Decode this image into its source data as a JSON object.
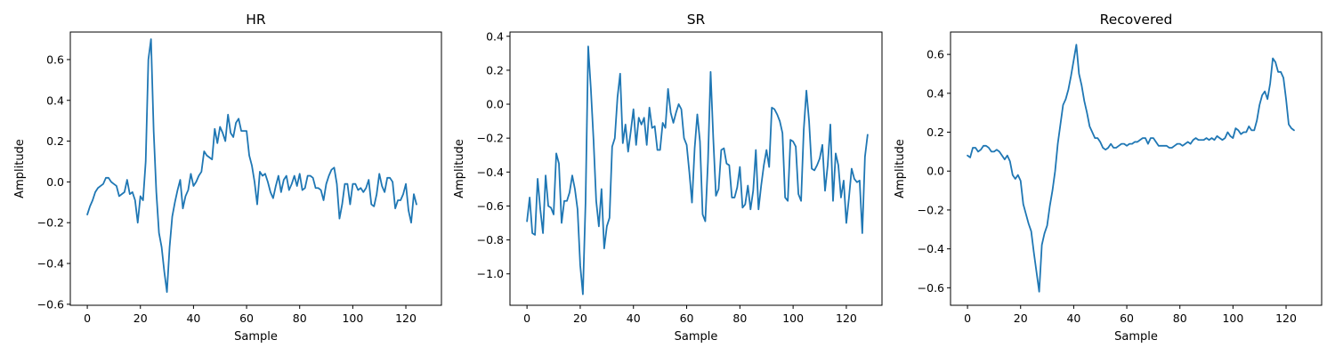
{
  "figure": {
    "background": "#ffffff",
    "line_color": "#1f77b4"
  },
  "chart_data": [
    {
      "type": "line",
      "title": "HR",
      "xlabel": "Sample",
      "ylabel": "Amplitude",
      "xlim": [
        -6.4,
        133.4
      ],
      "ylim": [
        -0.605,
        0.735
      ],
      "xticks": [
        0,
        20,
        40,
        60,
        80,
        100,
        120
      ],
      "yticks": [
        -0.6,
        -0.4,
        -0.2,
        0.0,
        0.2,
        0.4,
        0.6
      ],
      "ytick_labels": [
        "−0.6",
        "−0.4",
        "−0.2",
        "0.0",
        "0.2",
        "0.4",
        "0.6"
      ],
      "grid": false,
      "x_start": 0,
      "x_step": 1,
      "values": [
        -0.16,
        -0.12,
        -0.09,
        -0.05,
        -0.03,
        -0.02,
        -0.01,
        0.02,
        0.02,
        0.0,
        -0.01,
        -0.02,
        -0.07,
        -0.06,
        -0.05,
        0.01,
        -0.06,
        -0.05,
        -0.09,
        -0.2,
        -0.07,
        -0.09,
        0.1,
        0.6,
        0.7,
        0.25,
        -0.05,
        -0.25,
        -0.32,
        -0.44,
        -0.54,
        -0.32,
        -0.17,
        -0.1,
        -0.04,
        0.01,
        -0.13,
        -0.07,
        -0.04,
        0.04,
        -0.02,
        0.0,
        0.03,
        0.05,
        0.15,
        0.13,
        0.12,
        0.11,
        0.26,
        0.19,
        0.27,
        0.24,
        0.2,
        0.33,
        0.24,
        0.22,
        0.29,
        0.31,
        0.25,
        0.25,
        0.25,
        0.13,
        0.08,
        0.0,
        -0.11,
        0.05,
        0.03,
        0.04,
        0.0,
        -0.05,
        -0.08,
        -0.02,
        0.03,
        -0.05,
        0.01,
        0.03,
        -0.04,
        -0.01,
        0.03,
        -0.02,
        0.04,
        -0.04,
        -0.03,
        0.03,
        0.03,
        0.02,
        -0.03,
        -0.03,
        -0.04,
        -0.09,
        -0.01,
        0.03,
        0.06,
        0.07,
        -0.01,
        -0.18,
        -0.11,
        -0.01,
        -0.01,
        -0.11,
        -0.01,
        -0.01,
        -0.04,
        -0.03,
        -0.05,
        -0.03,
        0.01,
        -0.11,
        -0.12,
        -0.06,
        0.04,
        -0.02,
        -0.05,
        0.02,
        0.02,
        0.0,
        -0.13,
        -0.09,
        -0.09,
        -0.06,
        -0.01,
        -0.14,
        -0.2,
        -0.06,
        -0.11
      ]
    },
    {
      "type": "line",
      "title": "SR",
      "xlabel": "Sample",
      "ylabel": "Amplitude",
      "xlim": [
        -6.4,
        133.4
      ],
      "ylim": [
        -1.185,
        0.425
      ],
      "xticks": [
        0,
        20,
        40,
        60,
        80,
        100,
        120
      ],
      "yticks": [
        -1.0,
        -0.8,
        -0.6,
        -0.4,
        -0.2,
        0.0,
        0.2,
        0.4
      ],
      "ytick_labels": [
        "−1.0",
        "−0.8",
        "−0.6",
        "−0.4",
        "−0.2",
        "0.0",
        "0.2",
        "0.4"
      ],
      "grid": false,
      "x_start": 0,
      "x_step": 1,
      "values": [
        -0.69,
        -0.55,
        -0.76,
        -0.77,
        -0.44,
        -0.62,
        -0.76,
        -0.42,
        -0.6,
        -0.61,
        -0.65,
        -0.29,
        -0.35,
        -0.7,
        -0.57,
        -0.57,
        -0.52,
        -0.42,
        -0.5,
        -0.62,
        -0.95,
        -1.12,
        -0.58,
        0.34,
        0.09,
        -0.21,
        -0.57,
        -0.72,
        -0.5,
        -0.85,
        -0.72,
        -0.67,
        -0.25,
        -0.2,
        0.04,
        0.18,
        -0.23,
        -0.12,
        -0.28,
        -0.16,
        -0.03,
        -0.24,
        -0.08,
        -0.12,
        -0.08,
        -0.24,
        -0.02,
        -0.14,
        -0.13,
        -0.27,
        -0.27,
        -0.11,
        -0.14,
        0.09,
        -0.05,
        -0.11,
        -0.05,
        0.0,
        -0.03,
        -0.2,
        -0.24,
        -0.4,
        -0.58,
        -0.26,
        -0.06,
        -0.22,
        -0.65,
        -0.69,
        -0.34,
        0.19,
        -0.2,
        -0.54,
        -0.5,
        -0.27,
        -0.26,
        -0.35,
        -0.36,
        -0.55,
        -0.55,
        -0.49,
        -0.37,
        -0.61,
        -0.59,
        -0.48,
        -0.62,
        -0.51,
        -0.27,
        -0.62,
        -0.48,
        -0.36,
        -0.27,
        -0.37,
        -0.02,
        -0.03,
        -0.06,
        -0.1,
        -0.17,
        -0.55,
        -0.57,
        -0.21,
        -0.22,
        -0.25,
        -0.53,
        -0.57,
        -0.15,
        0.08,
        -0.1,
        -0.38,
        -0.39,
        -0.36,
        -0.32,
        -0.24,
        -0.51,
        -0.36,
        -0.12,
        -0.57,
        -0.29,
        -0.36,
        -0.55,
        -0.45,
        -0.7,
        -0.55,
        -0.38,
        -0.44,
        -0.46,
        -0.45,
        -0.76,
        -0.31,
        -0.18
      ]
    },
    {
      "type": "line",
      "title": "Recovered",
      "xlabel": "Sample",
      "ylabel": "Amplitude",
      "xlim": [
        -6.4,
        133.4
      ],
      "ylim": [
        -0.69,
        0.715
      ],
      "xticks": [
        0,
        20,
        40,
        60,
        80,
        100,
        120
      ],
      "yticks": [
        -0.6,
        -0.4,
        -0.2,
        0.0,
        0.2,
        0.4,
        0.6
      ],
      "ytick_labels": [
        "−0.6",
        "−0.4",
        "−0.2",
        "0.0",
        "0.2",
        "0.4",
        "0.6"
      ],
      "grid": false,
      "x_start": 0,
      "x_step": 1,
      "values": [
        0.08,
        0.07,
        0.12,
        0.12,
        0.1,
        0.11,
        0.13,
        0.13,
        0.12,
        0.1,
        0.1,
        0.11,
        0.1,
        0.08,
        0.06,
        0.08,
        0.05,
        -0.02,
        -0.04,
        -0.02,
        -0.05,
        -0.17,
        -0.22,
        -0.27,
        -0.31,
        -0.42,
        -0.52,
        -0.62,
        -0.38,
        -0.32,
        -0.28,
        -0.18,
        -0.1,
        0.0,
        0.14,
        0.24,
        0.34,
        0.37,
        0.42,
        0.49,
        0.57,
        0.65,
        0.5,
        0.44,
        0.36,
        0.3,
        0.23,
        0.2,
        0.17,
        0.17,
        0.15,
        0.12,
        0.11,
        0.12,
        0.14,
        0.12,
        0.12,
        0.13,
        0.14,
        0.14,
        0.13,
        0.14,
        0.14,
        0.15,
        0.15,
        0.16,
        0.17,
        0.17,
        0.14,
        0.17,
        0.17,
        0.15,
        0.13,
        0.13,
        0.13,
        0.13,
        0.12,
        0.12,
        0.13,
        0.14,
        0.14,
        0.13,
        0.14,
        0.15,
        0.14,
        0.16,
        0.17,
        0.16,
        0.16,
        0.16,
        0.17,
        0.16,
        0.17,
        0.16,
        0.18,
        0.17,
        0.16,
        0.17,
        0.2,
        0.18,
        0.17,
        0.22,
        0.21,
        0.19,
        0.2,
        0.2,
        0.23,
        0.21,
        0.21,
        0.26,
        0.34,
        0.39,
        0.41,
        0.37,
        0.45,
        0.58,
        0.56,
        0.51,
        0.51,
        0.48,
        0.37,
        0.24,
        0.22,
        0.21
      ]
    }
  ]
}
